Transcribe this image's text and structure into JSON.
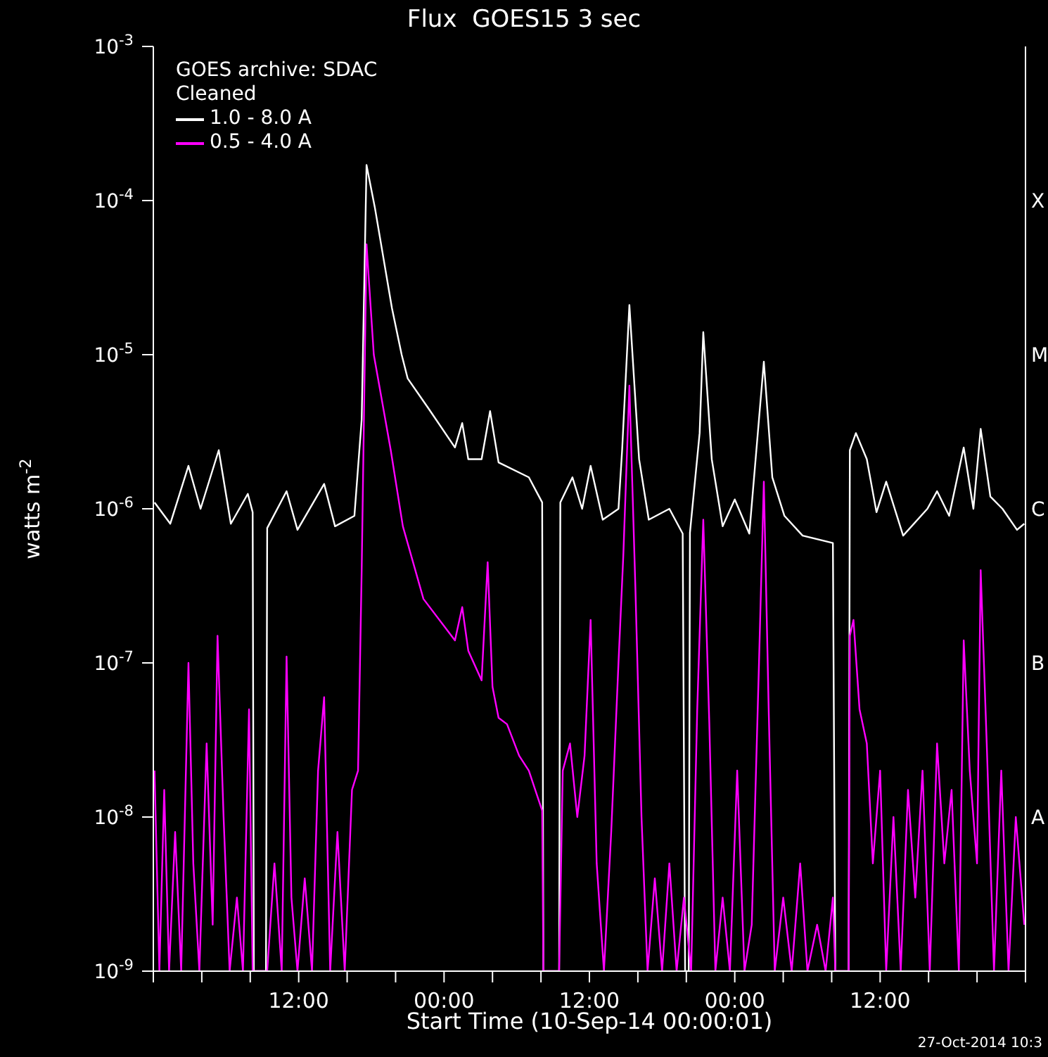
{
  "chart_data": {
    "type": "line",
    "title": "Flux  GOES15 3 sec",
    "xlabel": "Start Time (10-Sep-14 00:00:01)",
    "ylabel": "watts m$^{-2}$",
    "annotations": [
      "GOES archive: SDAC",
      "Cleaned",
      "27-Oct-2014 10:3"
    ],
    "y2_categories": [
      null,
      "X",
      "M",
      "C",
      "B",
      "A",
      null
    ],
    "log": "y",
    "grid": false,
    "legend": "top left",
    "marker": "none",
    "line_style": "solid",
    "xlim": [
      "2014-09-10T00:00",
      "2014-09-13T00:00"
    ],
    "xticks": [
      {
        "value": "2014-09-10T00:00",
        "label": null
      },
      {
        "value": "2014-09-10T04:00",
        "label": null
      },
      {
        "value": "2014-09-10T08:00",
        "label": null
      },
      {
        "value": "2014-09-10T12:00",
        "label": "12:00"
      },
      {
        "value": "2014-09-10T16:00",
        "label": null
      },
      {
        "value": "2014-09-10T20:00",
        "label": null
      },
      {
        "value": "2014-09-11T00:00",
        "label": "00:00"
      },
      {
        "value": "2014-09-11T04:00",
        "label": null
      },
      {
        "value": "2014-09-11T08:00",
        "label": null
      },
      {
        "value": "2014-09-11T12:00",
        "label": "12:00"
      },
      {
        "value": "2014-09-11T16:00",
        "label": null
      },
      {
        "value": "2014-09-11T20:00",
        "label": null
      },
      {
        "value": "2014-09-12T00:00",
        "label": "00:00"
      },
      {
        "value": "2014-09-12T04:00",
        "label": null
      },
      {
        "value": "2014-09-12T08:00",
        "label": null
      },
      {
        "value": "2014-09-12T12:00",
        "label": "12:00"
      },
      {
        "value": "2014-09-12T16:00",
        "label": null
      },
      {
        "value": "2014-09-12T20:00",
        "label": null
      },
      {
        "value": "2014-09-13T00:00",
        "label": null
      }
    ],
    "ylim": [
      1e-09,
      0.001
    ],
    "yticks": [
      {
        "value": 1e-09,
        "label": "10$^{-9}$"
      },
      {
        "value": 1e-08,
        "label": "10$^{-8}$"
      },
      {
        "value": 1e-07,
        "label": "10$^{-7}$"
      },
      {
        "value": 1e-06,
        "label": "10$^{-6}$"
      },
      {
        "value": 1e-05,
        "label": "10$^{-5}$"
      },
      {
        "value": 0.0001,
        "label": "10$^{-4}$"
      },
      {
        "value": 0.001,
        "label": "10$^{-3}$"
      }
    ],
    "series": [
      {
        "name": "1.0 - 8.0 A",
        "color": "#ffffff",
        "x": [
          "2014-09-10T00:06",
          "2014-09-10T01:24",
          "2014-09-10T02:54",
          "2014-09-10T03:54",
          "2014-09-10T05:24",
          "2014-09-10T06:24",
          "2014-09-10T07:48",
          "2014-09-10T08:12",
          "2014-09-10T08:18",
          "2014-09-10T09:18",
          "2014-09-10T09:24",
          "2014-09-10T11:00",
          "2014-09-10T11:54",
          "2014-09-10T14:06",
          "2014-09-10T15:00",
          "2014-09-10T16:36",
          "2014-09-10T17:12",
          "2014-09-10T17:36",
          "2014-09-10T18:18",
          "2014-09-10T19:42",
          "2014-09-10T20:30",
          "2014-09-10T21:00",
          "2014-09-10T22:42",
          "2014-09-11T00:54",
          "2014-09-11T01:30",
          "2014-09-11T02:00",
          "2014-09-11T03:06",
          "2014-09-11T03:48",
          "2014-09-11T04:30",
          "2014-09-11T07:00",
          "2014-09-11T08:06",
          "2014-09-11T08:12",
          "2014-09-11T09:30",
          "2014-09-11T09:36",
          "2014-09-11T10:36",
          "2014-09-11T11:24",
          "2014-09-11T12:06",
          "2014-09-11T13:06",
          "2014-09-11T14:24",
          "2014-09-11T14:42",
          "2014-09-11T15:18",
          "2014-09-11T16:06",
          "2014-09-11T16:54",
          "2014-09-11T18:36",
          "2014-09-11T19:42",
          "2014-09-11T19:54",
          "2014-09-11T20:12",
          "2014-09-11T20:18",
          "2014-09-11T21:06",
          "2014-09-11T21:24",
          "2014-09-11T22:06",
          "2014-09-11T23:00",
          "2014-09-12T00:00",
          "2014-09-12T01:12",
          "2014-09-12T02:24",
          "2014-09-12T03:06",
          "2014-09-12T04:06",
          "2014-09-12T05:36",
          "2014-09-12T08:06",
          "2014-09-12T08:18",
          "2014-09-12T09:24",
          "2014-09-12T09:30",
          "2014-09-12T10:00",
          "2014-09-12T10:54",
          "2014-09-12T11:42",
          "2014-09-12T12:30",
          "2014-09-12T13:54",
          "2014-09-12T15:54",
          "2014-09-12T16:42",
          "2014-09-12T17:42",
          "2014-09-12T18:54",
          "2014-09-12T19:42",
          "2014-09-12T20:18",
          "2014-09-12T21:06",
          "2014-09-12T22:06",
          "2014-09-12T23:18",
          "2014-09-12T23:54"
        ],
        "values": [
          1.1e-06,
          8e-07,
          1.9e-06,
          1e-06,
          2.4e-06,
          8e-07,
          1.25e-06,
          9.5e-07,
          1e-09,
          1e-09,
          7.5e-07,
          1.3e-06,
          7.3e-07,
          1.45e-06,
          7.7e-07,
          9e-07,
          3.8e-06,
          0.00017,
          8.9e-05,
          2e-05,
          1e-05,
          7e-06,
          4.5e-06,
          2.5e-06,
          3.6e-06,
          2.1e-06,
          2.1e-06,
          4.3e-06,
          2e-06,
          1.6e-06,
          1.1e-06,
          1e-09,
          1e-09,
          1.1e-06,
          1.6e-06,
          1e-06,
          1.9e-06,
          8.5e-07,
          1e-06,
          2.4e-06,
          2.1e-05,
          2.1e-06,
          8.5e-07,
          1e-06,
          6.9e-07,
          1e-09,
          1e-09,
          7e-07,
          3.1e-06,
          1.4e-05,
          2.1e-06,
          7.7e-07,
          1.15e-06,
          6.9e-07,
          9e-06,
          1.6e-06,
          9e-07,
          6.7e-07,
          6e-07,
          1e-09,
          1e-09,
          2.4e-06,
          3.1e-06,
          2.1e-06,
          9.5e-07,
          1.5e-06,
          6.7e-07,
          1e-06,
          1.3e-06,
          9e-07,
          2.5e-06,
          1e-06,
          3.3e-06,
          1.2e-06,
          1e-06,
          7.3e-07,
          8e-07
        ]
      },
      {
        "name": "0.5 - 4.0 A",
        "color": "#ff00ff",
        "x": [
          "2014-09-10T00:06",
          "2014-09-10T00:30",
          "2014-09-10T00:54",
          "2014-09-10T01:18",
          "2014-09-10T01:48",
          "2014-09-10T02:18",
          "2014-09-10T02:54",
          "2014-09-10T03:18",
          "2014-09-10T03:48",
          "2014-09-10T04:24",
          "2014-09-10T04:54",
          "2014-09-10T05:18",
          "2014-09-10T05:48",
          "2014-09-10T06:18",
          "2014-09-10T06:54",
          "2014-09-10T07:24",
          "2014-09-10T07:54",
          "2014-09-10T08:12",
          "2014-09-10T09:24",
          "2014-09-10T10:00",
          "2014-09-10T10:36",
          "2014-09-10T11:00",
          "2014-09-10T11:24",
          "2014-09-10T11:54",
          "2014-09-10T12:30",
          "2014-09-10T13:06",
          "2014-09-10T13:36",
          "2014-09-10T14:06",
          "2014-09-10T14:36",
          "2014-09-10T15:12",
          "2014-09-10T15:48",
          "2014-09-10T16:24",
          "2014-09-10T16:54",
          "2014-09-10T17:12",
          "2014-09-10T17:36",
          "2014-09-10T18:12",
          "2014-09-10T19:36",
          "2014-09-10T20:36",
          "2014-09-10T22:18",
          "2014-09-11T00:54",
          "2014-09-11T01:30",
          "2014-09-11T02:00",
          "2014-09-11T03:06",
          "2014-09-11T03:36",
          "2014-09-11T04:00",
          "2014-09-11T04:30",
          "2014-09-11T05:12",
          "2014-09-11T06:12",
          "2014-09-11T07:00",
          "2014-09-11T08:06",
          "2014-09-11T08:12",
          "2014-09-11T09:30",
          "2014-09-11T09:48",
          "2014-09-11T10:24",
          "2014-09-11T11:00",
          "2014-09-11T11:36",
          "2014-09-11T12:06",
          "2014-09-11T12:36",
          "2014-09-11T13:12",
          "2014-09-11T13:48",
          "2014-09-11T14:24",
          "2014-09-11T14:48",
          "2014-09-11T15:18",
          "2014-09-11T15:48",
          "2014-09-11T16:18",
          "2014-09-11T16:48",
          "2014-09-11T17:24",
          "2014-09-11T18:00",
          "2014-09-11T18:36",
          "2014-09-11T19:12",
          "2014-09-11T19:48",
          "2014-09-11T20:24",
          "2014-09-11T20:54",
          "2014-09-11T21:24",
          "2014-09-11T21:54",
          "2014-09-11T22:24",
          "2014-09-11T23:00",
          "2014-09-11T23:36",
          "2014-09-12T00:12",
          "2014-09-12T00:48",
          "2014-09-12T01:24",
          "2014-09-12T02:00",
          "2014-09-12T02:24",
          "2014-09-12T02:48",
          "2014-09-12T03:18",
          "2014-09-12T04:00",
          "2014-09-12T04:42",
          "2014-09-12T05:24",
          "2014-09-12T06:00",
          "2014-09-12T06:48",
          "2014-09-12T07:30",
          "2014-09-12T08:06",
          "2014-09-12T08:18",
          "2014-09-12T09:24",
          "2014-09-12T09:30",
          "2014-09-12T09:48",
          "2014-09-12T10:18",
          "2014-09-12T10:54",
          "2014-09-12T11:24",
          "2014-09-12T12:00",
          "2014-09-12T12:30",
          "2014-09-12T13:06",
          "2014-09-12T13:42",
          "2014-09-12T14:18",
          "2014-09-12T14:54",
          "2014-09-12T15:30",
          "2014-09-12T16:06",
          "2014-09-12T16:42",
          "2014-09-12T17:18",
          "2014-09-12T17:54",
          "2014-09-12T18:30",
          "2014-09-12T18:54",
          "2014-09-12T19:24",
          "2014-09-12T20:00",
          "2014-09-12T20:18",
          "2014-09-12T20:48",
          "2014-09-12T21:24",
          "2014-09-12T22:00",
          "2014-09-12T22:36",
          "2014-09-12T23:12",
          "2014-09-12T23:54"
        ],
        "values": [
          2e-08,
          1e-09,
          1.5e-08,
          1e-09,
          8e-09,
          1e-09,
          1e-07,
          5e-09,
          1e-09,
          3e-08,
          2e-09,
          1.5e-07,
          1e-08,
          1e-09,
          3e-09,
          1e-09,
          5e-08,
          1e-09,
          1e-09,
          5e-09,
          1e-09,
          1.1e-07,
          3e-09,
          1e-09,
          4e-09,
          1e-09,
          2e-08,
          6e-08,
          1e-09,
          8e-09,
          1e-09,
          1.5e-08,
          2e-08,
          4e-07,
          5.2e-05,
          1e-05,
          2.4e-06,
          7.7e-07,
          2.6e-07,
          1.4e-07,
          2.3e-07,
          1.2e-07,
          7.7e-08,
          4.5e-07,
          7e-08,
          4.4e-08,
          4e-08,
          2.5e-08,
          2e-08,
          1.1e-08,
          1e-09,
          1e-09,
          2e-08,
          3e-08,
          1e-08,
          2.5e-08,
          1.9e-07,
          5e-09,
          1e-09,
          8e-09,
          1e-07,
          5e-07,
          6.3e-06,
          3e-07,
          1e-08,
          1e-09,
          4e-09,
          1e-09,
          5e-09,
          1e-09,
          3e-09,
          1e-09,
          5e-08,
          8.5e-07,
          4e-08,
          1e-09,
          3e-09,
          1e-09,
          2e-08,
          1e-09,
          2e-09,
          1e-07,
          1.5e-06,
          5e-08,
          1e-09,
          3e-09,
          1e-09,
          5e-09,
          1e-09,
          2e-09,
          1e-09,
          3e-09,
          1e-09,
          1e-09,
          1.5e-07,
          1.9e-07,
          5e-08,
          3e-08,
          5e-09,
          2e-08,
          1e-09,
          1e-08,
          1e-09,
          1.5e-08,
          3e-09,
          2e-08,
          1e-09,
          3e-08,
          5e-09,
          1.5e-08,
          1e-09,
          1.4e-07,
          2e-08,
          5e-09,
          4e-07,
          3e-08,
          1e-09,
          2e-08,
          1e-09,
          1e-08,
          2e-09
        ]
      }
    ]
  }
}
